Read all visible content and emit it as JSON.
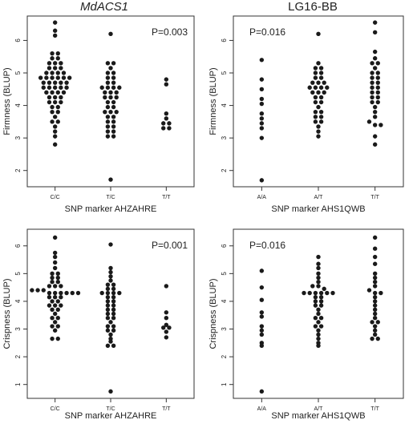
{
  "titles": [
    "MdACS1",
    "LG16-BB"
  ],
  "chart_data": [
    {
      "type": "scatter",
      "subtype": "beeswarm",
      "title": "MdACS1",
      "annotation": "P=0.003",
      "xlabel": "SNP marker AHZAHRE",
      "ylabel": "Firmness (BLUP)",
      "categories": [
        "C/C",
        "T/C",
        "T/T"
      ],
      "yticks": [
        2,
        3,
        4,
        5,
        6
      ],
      "ylim": [
        1.5,
        6.75
      ],
      "values": [
        [
          6.55,
          6.3,
          6.15,
          5.6,
          5.6,
          5.45,
          5.45,
          5.3,
          5.3,
          5.3,
          5.15,
          5.15,
          5.15,
          5.0,
          5.0,
          5.0,
          5.0,
          4.85,
          4.85,
          4.85,
          4.85,
          4.85,
          4.85,
          4.7,
          4.7,
          4.7,
          4.7,
          4.7,
          4.55,
          4.55,
          4.55,
          4.55,
          4.55,
          4.4,
          4.4,
          4.4,
          4.4,
          4.25,
          4.25,
          4.25,
          4.1,
          4.1,
          4.1,
          3.95,
          3.95,
          3.8,
          3.8,
          3.65,
          3.5,
          3.5,
          3.35,
          3.2,
          3.05,
          2.8
        ],
        [
          6.2,
          5.3,
          5.3,
          5.15,
          5.0,
          5.0,
          4.85,
          4.85,
          4.7,
          4.7,
          4.55,
          4.55,
          4.55,
          4.55,
          4.4,
          4.4,
          4.4,
          4.25,
          4.25,
          4.25,
          4.1,
          4.1,
          3.95,
          3.95,
          3.8,
          3.8,
          3.8,
          3.65,
          3.65,
          3.5,
          3.5,
          3.35,
          3.35,
          3.2,
          3.2,
          3.05,
          3.05,
          1.72
        ],
        [
          4.8,
          4.65,
          3.75,
          3.6,
          3.45,
          3.45,
          3.3,
          3.3
        ]
      ]
    },
    {
      "type": "scatter",
      "subtype": "beeswarm",
      "title": "LG16-BB",
      "annotation": "P=0.016",
      "xlabel": "SNP marker AHS1QWB",
      "ylabel": "Firmness (BLUP)",
      "categories": [
        "A/A",
        "A/T",
        "T/T"
      ],
      "yticks": [
        2,
        3,
        4,
        5,
        6
      ],
      "ylim": [
        1.5,
        6.75
      ],
      "values": [
        [
          5.4,
          4.8,
          4.5,
          4.2,
          4.05,
          3.75,
          3.6,
          3.45,
          3.3,
          3.0,
          1.7
        ],
        [
          6.2,
          5.3,
          5.15,
          5.15,
          5.0,
          5.0,
          4.85,
          4.85,
          4.7,
          4.7,
          4.7,
          4.55,
          4.55,
          4.55,
          4.55,
          4.4,
          4.4,
          4.4,
          4.25,
          4.25,
          4.1,
          4.1,
          3.95,
          3.8,
          3.8,
          3.65,
          3.65,
          3.5,
          3.5,
          3.35,
          3.2,
          3.05
        ],
        [
          6.55,
          6.25,
          5.65,
          5.45,
          5.3,
          5.3,
          5.15,
          5.0,
          5.0,
          4.85,
          4.85,
          4.7,
          4.7,
          4.55,
          4.55,
          4.4,
          4.4,
          4.25,
          4.25,
          4.1,
          4.1,
          3.95,
          3.8,
          3.65,
          3.5,
          3.4,
          3.4,
          3.05,
          2.8
        ]
      ]
    },
    {
      "type": "scatter",
      "subtype": "beeswarm",
      "title": "",
      "annotation": "P=0.001",
      "xlabel": "SNP marker AHZAHRE",
      "ylabel": "Crispness (BLUP)",
      "categories": [
        "C/C",
        "T/C",
        "T/T"
      ],
      "yticks": [
        1,
        2,
        3,
        4,
        5,
        6
      ],
      "ylim": [
        0.5,
        6.6
      ],
      "values": [
        [
          6.3,
          5.75,
          5.6,
          5.4,
          5.2,
          5.0,
          5.0,
          4.85,
          4.85,
          4.7,
          4.7,
          4.55,
          4.55,
          4.55,
          4.4,
          4.4,
          4.4,
          4.3,
          4.3,
          4.3,
          4.3,
          4.3,
          4.3,
          4.15,
          4.15,
          4.15,
          4.0,
          4.0,
          3.85,
          3.85,
          3.85,
          3.7,
          3.7,
          3.55,
          3.4,
          3.4,
          3.25,
          3.1,
          3.1,
          2.95,
          2.65,
          2.65
        ],
        [
          6.05,
          5.2,
          5.05,
          4.9,
          4.75,
          4.6,
          4.6,
          4.45,
          4.45,
          4.3,
          4.3,
          4.3,
          4.3,
          4.15,
          4.15,
          4.0,
          4.0,
          3.85,
          3.85,
          3.7,
          3.7,
          3.55,
          3.55,
          3.4,
          3.4,
          3.25,
          3.1,
          3.1,
          2.95,
          2.95,
          2.8,
          2.65,
          2.55,
          2.4,
          2.4,
          0.75
        ],
        [
          4.55,
          3.6,
          3.4,
          3.15,
          3.05,
          3.05,
          2.9,
          2.7
        ]
      ]
    },
    {
      "type": "scatter",
      "subtype": "beeswarm",
      "title": "",
      "annotation": "P=0.016",
      "xlabel": "SNP marker AHS1QWB",
      "ylabel": "Crispness (BLUP)",
      "categories": [
        "A/A",
        "A/T",
        "T/T"
      ],
      "yticks": [
        1,
        2,
        3,
        4,
        5,
        6
      ],
      "ylim": [
        0.5,
        6.6
      ],
      "values": [
        [
          5.1,
          4.5,
          4.05,
          3.6,
          3.45,
          3.1,
          2.95,
          2.8,
          2.5,
          2.4,
          0.75
        ],
        [
          5.6,
          5.35,
          5.2,
          5.0,
          4.85,
          4.7,
          4.55,
          4.55,
          4.45,
          4.3,
          4.3,
          4.3,
          4.3,
          4.3,
          4.3,
          4.15,
          4.15,
          4.0,
          4.0,
          3.85,
          3.85,
          3.7,
          3.55,
          3.4,
          3.4,
          3.25,
          3.1,
          3.1,
          2.95,
          2.8,
          2.65,
          2.5,
          2.4
        ],
        [
          6.3,
          5.9,
          5.6,
          5.35,
          5.0,
          4.85,
          4.7,
          4.55,
          4.4,
          4.3,
          4.3,
          4.15,
          4.0,
          3.85,
          3.7,
          3.55,
          3.4,
          3.25,
          3.25,
          3.1,
          2.95,
          2.8,
          2.65,
          2.65
        ]
      ]
    }
  ]
}
